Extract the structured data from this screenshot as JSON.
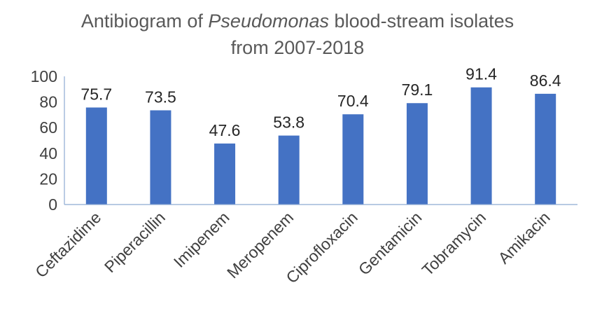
{
  "chart_data": {
    "type": "bar",
    "title": {
      "prefix": "Antibiogram of ",
      "italic": "Pseudomonas",
      "suffix": " blood-stream isolates",
      "line2": "from 2007-2018"
    },
    "categories": [
      "Ceftazidime",
      "Piperacillin",
      "Imipenem",
      "Meropenem",
      "Ciprofloxacin",
      "Gentamicin",
      "Tobramycin",
      "Amikacin"
    ],
    "values": [
      75.7,
      73.5,
      47.6,
      53.8,
      70.4,
      79.1,
      91.4,
      86.4
    ],
    "data_labels": [
      "75.7",
      "73.5",
      "47.6",
      "53.8",
      "70.4",
      "79.1",
      "91.4",
      "86.4"
    ],
    "yticks": [
      "0",
      "20",
      "40",
      "60",
      "80",
      "100"
    ],
    "ylim": [
      0,
      100
    ],
    "xlabel": "",
    "ylabel": "",
    "grid": false,
    "legend": "none",
    "bar_color": "#4472c4"
  }
}
